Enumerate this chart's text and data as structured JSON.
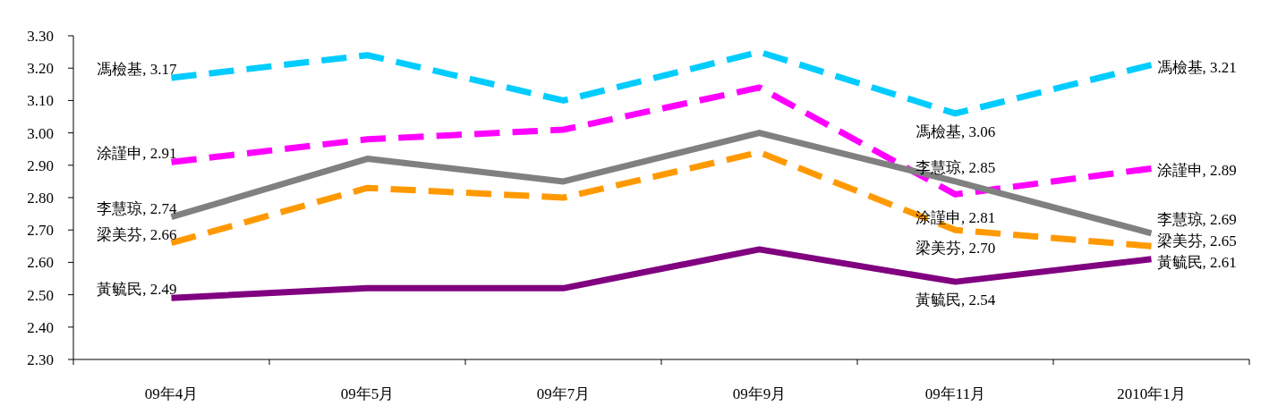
{
  "chart_data": {
    "type": "line",
    "categories": [
      "09年4月",
      "09年5月",
      "09年7月",
      "09年9月",
      "09年11月",
      "2010年1月"
    ],
    "series": [
      {
        "color": "#00ccff",
        "line_style": "dashed",
        "values": [
          3.17,
          3.24,
          3.1,
          3.25,
          3.06,
          3.21
        ],
        "value_labels": [
          "馮檢基, 3.17",
          null,
          null,
          null,
          "馮檢基, 3.06",
          "馮檢基, 3.21"
        ]
      },
      {
        "color": "#ff00ff",
        "line_style": "dashed",
        "values": [
          2.91,
          2.98,
          3.01,
          3.14,
          2.81,
          2.89
        ],
        "value_labels": [
          "涂謹申, 2.91",
          null,
          null,
          null,
          "涂謹申, 2.81",
          "涂謹申, 2.89"
        ]
      },
      {
        "color": "#808080",
        "line_style": "solid",
        "values": [
          2.74,
          2.92,
          2.85,
          3.0,
          2.85,
          2.69
        ],
        "value_labels": [
          "李慧琼, 2.74",
          null,
          null,
          null,
          "李慧琼, 2.85",
          "李慧琼, 2.69"
        ]
      },
      {
        "color": "#ff9900",
        "line_style": "dashed",
        "values": [
          2.66,
          2.83,
          2.8,
          2.94,
          2.7,
          2.65
        ],
        "value_labels": [
          "梁美芬, 2.66",
          null,
          null,
          null,
          "梁美芬, 2.70",
          "梁美芬, 2.65"
        ]
      },
      {
        "color": "#800080",
        "line_style": "solid",
        "values": [
          2.49,
          2.52,
          2.52,
          2.64,
          2.54,
          2.61
        ],
        "value_labels": [
          "黃毓民, 2.49",
          null,
          null,
          null,
          "黃毓民, 2.54",
          "黃毓民, 2.61"
        ]
      }
    ],
    "ylim": [
      2.3,
      3.3
    ],
    "yticks": [
      {
        "value": 2.3,
        "label": "2.30"
      },
      {
        "value": 2.4,
        "label": "2.40"
      },
      {
        "value": 2.5,
        "label": "2.50"
      },
      {
        "value": 2.6,
        "label": "2.60"
      },
      {
        "value": 2.7,
        "label": "2.70"
      },
      {
        "value": 2.8,
        "label": "2.80"
      },
      {
        "value": 2.9,
        "label": "2.90"
      },
      {
        "value": 3.0,
        "label": "3.00"
      },
      {
        "value": 3.1,
        "label": "3.10"
      },
      {
        "value": 3.2,
        "label": "3.20"
      },
      {
        "value": 3.3,
        "label": "3.30"
      }
    ],
    "legend": false,
    "grid": false,
    "marker": "none"
  }
}
